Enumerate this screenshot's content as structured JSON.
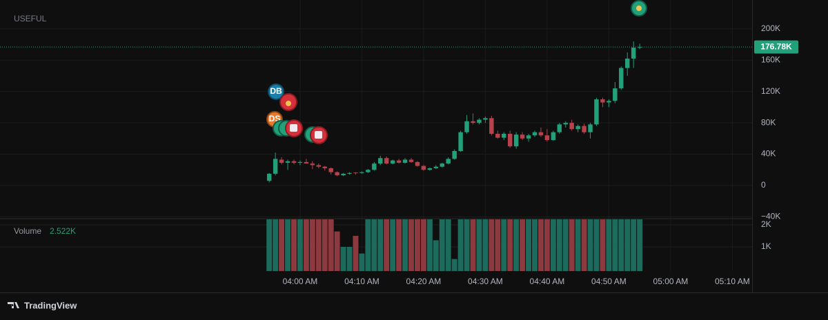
{
  "chart_data": {
    "type": "candlestick",
    "title": "USEFUL",
    "markers": [
      "DB",
      "DS"
    ],
    "x": [
      235,
      236,
      237,
      238,
      239,
      240,
      241,
      242,
      243,
      244,
      245,
      246,
      247,
      248,
      249,
      250,
      251,
      252,
      253,
      254,
      255,
      256,
      257,
      258,
      259,
      260,
      261,
      262,
      263,
      264,
      265,
      266,
      267,
      268,
      269,
      270,
      271,
      272,
      273,
      274,
      275,
      276,
      277,
      278,
      279,
      280,
      281,
      282,
      283,
      284,
      285,
      286,
      287,
      288,
      289,
      290,
      291,
      292,
      293,
      294,
      295
    ],
    "open": [
      6000,
      15000,
      33000,
      29000,
      31000,
      29000,
      30000,
      28000,
      26000,
      24000,
      22000,
      17000,
      13000,
      15000,
      16500,
      16000,
      17000,
      20000,
      28000,
      35000,
      28000,
      32000,
      29000,
      33000,
      30000,
      25000,
      20000,
      22000,
      24000,
      28000,
      34000,
      44000,
      68000,
      82000,
      80000,
      84000,
      86000,
      66000,
      61000,
      66000,
      50000,
      65000,
      60000,
      64000,
      68000,
      64000,
      58000,
      68000,
      78000,
      80000,
      72000,
      76000,
      68000,
      78000,
      110000,
      106000,
      108000,
      124000,
      150000,
      162000,
      176000
    ],
    "high": [
      16000,
      42000,
      36000,
      33000,
      33000,
      32000,
      34000,
      31000,
      28000,
      25000,
      23000,
      18000,
      16000,
      17000,
      17000,
      18000,
      21000,
      30000,
      38000,
      37000,
      33000,
      34000,
      35000,
      35000,
      31000,
      26000,
      23000,
      26000,
      29000,
      36000,
      46000,
      70000,
      90000,
      92000,
      86000,
      88000,
      89000,
      70000,
      68000,
      70000,
      68000,
      68000,
      66000,
      70000,
      74000,
      72000,
      70000,
      80000,
      82000,
      84000,
      78000,
      79000,
      80000,
      112000,
      112000,
      110000,
      132000,
      152000,
      170000,
      184000,
      181000
    ],
    "low": [
      4000,
      13000,
      27000,
      20000,
      27000,
      26000,
      28000,
      21000,
      22000,
      19000,
      14000,
      12000,
      12000,
      14000,
      14000,
      15000,
      16000,
      19000,
      26000,
      27000,
      27000,
      28000,
      28000,
      29000,
      24000,
      19000,
      19000,
      21000,
      23000,
      27000,
      33000,
      43000,
      66000,
      78000,
      78000,
      80000,
      64000,
      60000,
      58000,
      48000,
      47000,
      58000,
      56000,
      62000,
      62000,
      56000,
      57000,
      66000,
      74000,
      70000,
      68000,
      66000,
      60000,
      76000,
      100000,
      100000,
      105000,
      122000,
      140000,
      150000,
      174000
    ],
    "close": [
      15000,
      34000,
      29000,
      31000,
      29000,
      30000,
      28000,
      26000,
      24000,
      22000,
      17000,
      13000,
      15000,
      16000,
      16000,
      17000,
      20000,
      28000,
      35000,
      28000,
      32000,
      29000,
      33000,
      30000,
      25000,
      20000,
      22000,
      24000,
      28000,
      34000,
      44000,
      68000,
      82000,
      80000,
      84000,
      86000,
      66000,
      61000,
      66000,
      50000,
      65000,
      60000,
      64000,
      68000,
      64000,
      58000,
      68000,
      78000,
      80000,
      72000,
      76000,
      68000,
      78000,
      110000,
      106000,
      108000,
      124000,
      150000,
      162000,
      176000,
      176780
    ],
    "volume": [
      2400,
      2500,
      2400,
      2400,
      2400,
      2400,
      2400,
      2400,
      2400,
      2400,
      2400,
      1700,
      1000,
      1000,
      1500,
      700,
      2400,
      2400,
      2400,
      2400,
      2400,
      2400,
      2400,
      2400,
      2400,
      2400,
      2400,
      1300,
      2400,
      2400,
      450,
      2400,
      2400,
      2400,
      2400,
      2400,
      2400,
      2400,
      2400,
      2400,
      2400,
      2400,
      2400,
      2400,
      2400,
      2400,
      2400,
      2400,
      2400,
      2400,
      2400,
      2400,
      2400,
      2400,
      2400,
      2400,
      2400,
      2400,
      2400,
      2400,
      2522
    ],
    "up_color": "#22a07a",
    "down_color": "#b8424b",
    "volume_up_color": "#1d6b5d",
    "volume_down_color": "#8d3940",
    "xlim": [
      191.4,
      313.2
    ],
    "xticks": [
      {
        "value": 240,
        "label": "04:00 AM"
      },
      {
        "value": 250,
        "label": "04:10 AM"
      },
      {
        "value": 260,
        "label": "04:20 AM"
      },
      {
        "value": 270,
        "label": "04:30 AM"
      },
      {
        "value": 280,
        "label": "04:40 AM"
      },
      {
        "value": 290,
        "label": "04:50 AM"
      },
      {
        "value": 300,
        "label": "05:00 AM"
      },
      {
        "value": 310,
        "label": "05:10 AM"
      }
    ],
    "ylim": [
      -41400,
      228000
    ],
    "yticks": [
      {
        "value": 200000,
        "label": "200K"
      },
      {
        "value": 160000,
        "label": "160K"
      },
      {
        "value": 120000,
        "label": "120K"
      },
      {
        "value": 80000,
        "label": "80K"
      },
      {
        "value": 40000,
        "label": "40K"
      },
      0,
      {
        "value": -40000,
        "label": "−40K"
      }
    ],
    "volume_label": "Volume",
    "volume_ylim": [
      0,
      2250
    ],
    "volume_yticks": [
      {
        "value": 2000,
        "label": "2K"
      },
      {
        "value": 1000,
        "label": "1K"
      }
    ],
    "volume_legend": {
      "value": 2522,
      "label": "2.522K"
    },
    "price_label": {
      "value": 176780,
      "label": "176.78K"
    },
    "grid": true,
    "footer": "TradingView"
  }
}
